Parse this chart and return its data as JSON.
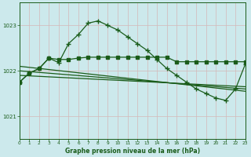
{
  "title": "Graphe pression niveau de la mer (hPa)",
  "bg_color": "#cce9ec",
  "grid_color": "#aacccc",
  "line_color": "#1a5c1a",
  "text_color": "#1a5c1a",
  "ylim": [
    1020.5,
    1023.5
  ],
  "xlim": [
    0,
    23
  ],
  "yticks": [
    1021,
    1022,
    1023
  ],
  "xticks": [
    0,
    1,
    2,
    3,
    4,
    5,
    6,
    7,
    8,
    9,
    10,
    11,
    12,
    13,
    14,
    15,
    16,
    17,
    18,
    19,
    20,
    21,
    22,
    23
  ],
  "series1_x": [
    0,
    1,
    2,
    3,
    4,
    5,
    6,
    7,
    8,
    9,
    10,
    11,
    12,
    13,
    14,
    15,
    16,
    17,
    18,
    19,
    20,
    21,
    22,
    23
  ],
  "series1_y": [
    1021.75,
    1021.95,
    1022.05,
    1022.28,
    1022.25,
    1022.25,
    1022.28,
    1022.3,
    1022.3,
    1022.3,
    1022.3,
    1022.3,
    1022.3,
    1022.3,
    1022.3,
    1022.3,
    1022.2,
    1022.2,
    1022.2,
    1022.2,
    1022.2,
    1022.2,
    1022.2,
    1022.2
  ],
  "series2_x": [
    0,
    1,
    2,
    3,
    4,
    5,
    6,
    7,
    8,
    9,
    10,
    11,
    12,
    13,
    14,
    15,
    16,
    17,
    18,
    19,
    20,
    21,
    22,
    23
  ],
  "series2_y": [
    1021.75,
    1021.95,
    1022.05,
    1022.28,
    1022.18,
    1022.6,
    1022.8,
    1023.05,
    1023.1,
    1023.0,
    1022.9,
    1022.75,
    1022.6,
    1022.45,
    1022.25,
    1022.05,
    1021.9,
    1021.75,
    1021.6,
    1021.5,
    1021.4,
    1021.35,
    1021.6,
    1022.15
  ],
  "series3_x": [
    0,
    4,
    23
  ],
  "series3_y": [
    1021.75,
    1022.25,
    1021.6
  ],
  "series4_x": [
    0,
    23
  ],
  "series4_y": [
    1021.75,
    1021.55
  ],
  "series5_x": [
    0,
    23
  ],
  "series5_y": [
    1021.85,
    1021.65
  ]
}
